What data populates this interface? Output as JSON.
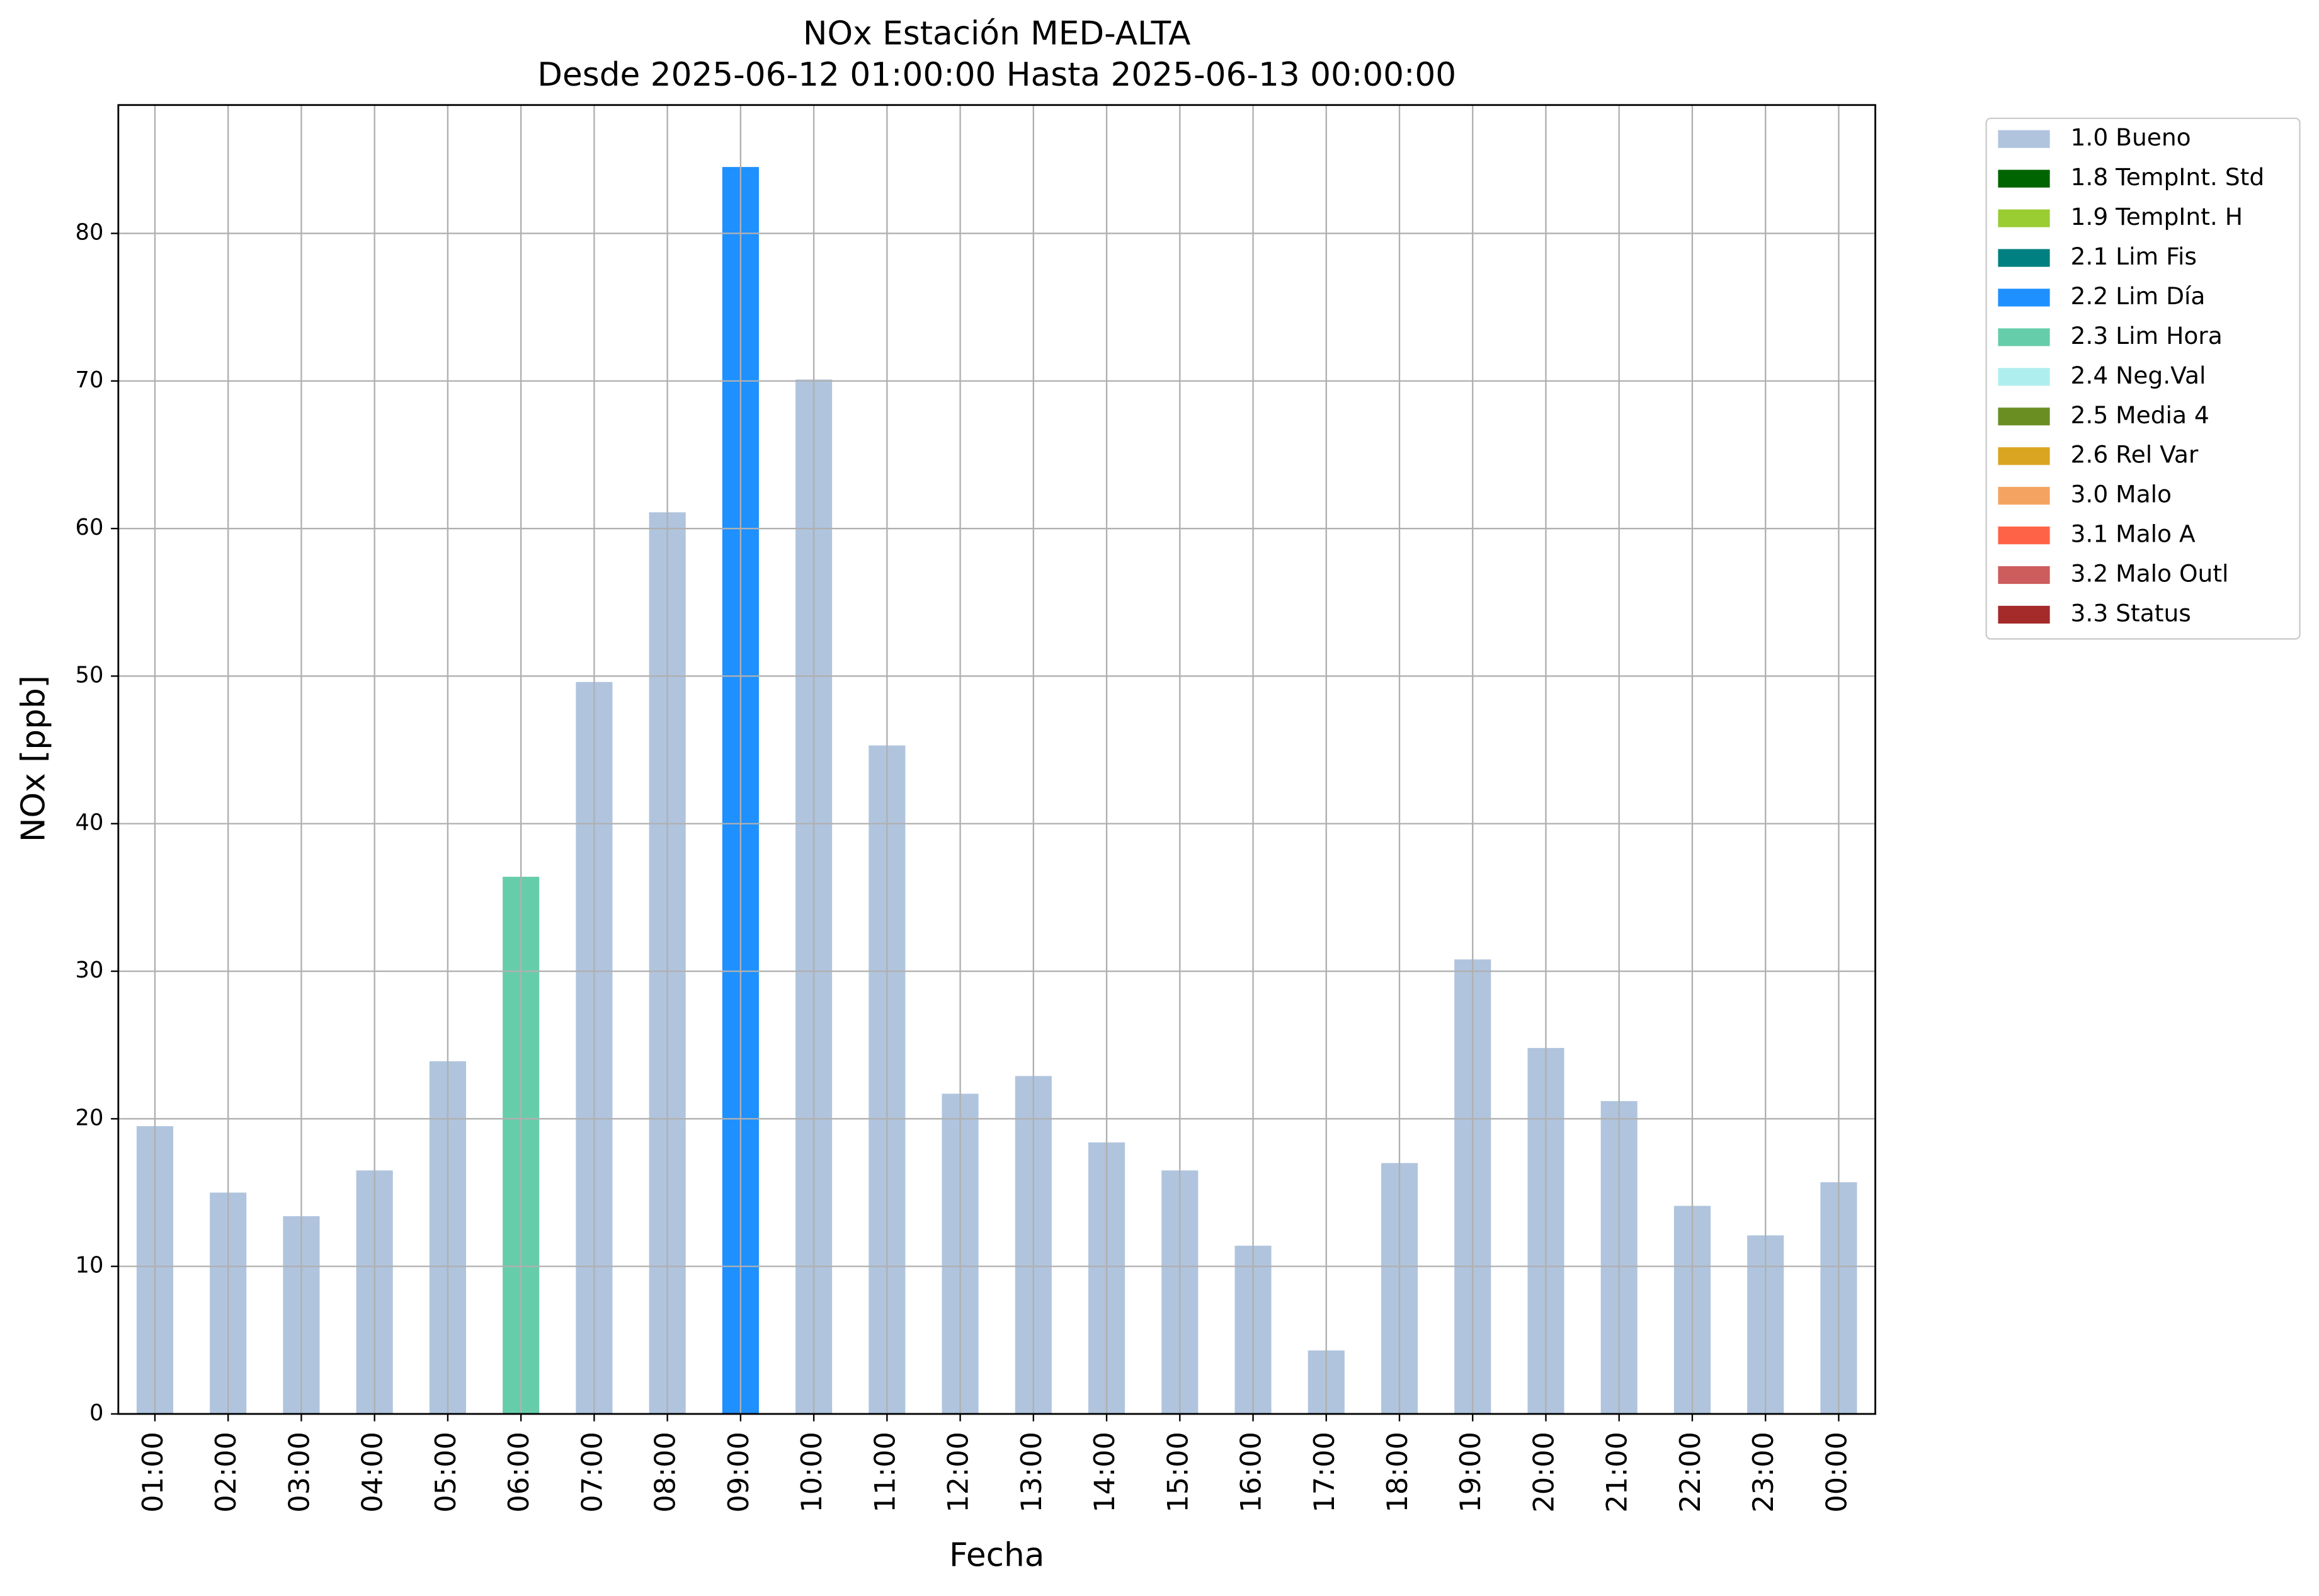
{
  "chart_data": {
    "type": "bar",
    "stacked": true,
    "title": "NOx Estación MED-ALTA",
    "subtitle": "Desde 2025-06-12 01:00:00 Hasta 2025-06-13 00:00:00",
    "x_label": "Fecha",
    "y_label": "NOx [ppb]",
    "categories": [
      "01:00",
      "02:00",
      "03:00",
      "04:00",
      "05:00",
      "06:00",
      "07:00",
      "08:00",
      "09:00",
      "10:00",
      "11:00",
      "12:00",
      "13:00",
      "14:00",
      "15:00",
      "16:00",
      "17:00",
      "18:00",
      "19:00",
      "20:00",
      "21:00",
      "22:00",
      "23:00",
      "00:00"
    ],
    "series": [
      {
        "name": "1.0 Bueno",
        "color": "#b0c4de",
        "values": [
          19.5,
          15.0,
          13.4,
          16.5,
          23.9,
          null,
          49.6,
          61.1,
          null,
          70.1,
          45.3,
          21.7,
          22.9,
          18.4,
          16.5,
          11.4,
          4.3,
          17.0,
          30.8,
          24.8,
          21.2,
          14.1,
          12.1,
          15.7
        ]
      },
      {
        "name": "1.8 TempInt. Std",
        "color": "#006400",
        "values": [
          null,
          null,
          null,
          null,
          null,
          null,
          null,
          null,
          null,
          null,
          null,
          null,
          null,
          null,
          null,
          null,
          null,
          null,
          null,
          null,
          null,
          null,
          null,
          null
        ]
      },
      {
        "name": "1.9 TempInt. H",
        "color": "#9acd32",
        "values": [
          null,
          null,
          null,
          null,
          null,
          null,
          null,
          null,
          null,
          null,
          null,
          null,
          null,
          null,
          null,
          null,
          null,
          null,
          null,
          null,
          null,
          null,
          null,
          null
        ]
      },
      {
        "name": "2.1 Lim Fis",
        "color": "#008080",
        "values": [
          null,
          null,
          null,
          null,
          null,
          null,
          null,
          null,
          null,
          null,
          null,
          null,
          null,
          null,
          null,
          null,
          null,
          null,
          null,
          null,
          null,
          null,
          null,
          null
        ]
      },
      {
        "name": "2.2 Lim Día",
        "color": "#1e90ff",
        "values": [
          null,
          null,
          null,
          null,
          null,
          null,
          null,
          null,
          84.5,
          null,
          null,
          null,
          null,
          null,
          null,
          null,
          null,
          null,
          null,
          null,
          null,
          null,
          null,
          null
        ]
      },
      {
        "name": "2.3 Lim Hora",
        "color": "#66cdaa",
        "values": [
          null,
          null,
          null,
          null,
          null,
          36.4,
          null,
          null,
          null,
          null,
          null,
          null,
          null,
          null,
          null,
          null,
          null,
          null,
          null,
          null,
          null,
          null,
          null,
          null
        ]
      },
      {
        "name": "2.4 Neg.Val",
        "color": "#afeeee",
        "values": [
          null,
          null,
          null,
          null,
          null,
          null,
          null,
          null,
          null,
          null,
          null,
          null,
          null,
          null,
          null,
          null,
          null,
          null,
          null,
          null,
          null,
          null,
          null,
          null
        ]
      },
      {
        "name": "2.5 Media 4",
        "color": "#6b8e23",
        "values": [
          null,
          null,
          null,
          null,
          null,
          null,
          null,
          null,
          null,
          null,
          null,
          null,
          null,
          null,
          null,
          null,
          null,
          null,
          null,
          null,
          null,
          null,
          null,
          null
        ]
      },
      {
        "name": "2.6 Rel Var",
        "color": "#daa520",
        "values": [
          null,
          null,
          null,
          null,
          null,
          null,
          null,
          null,
          null,
          null,
          null,
          null,
          null,
          null,
          null,
          null,
          null,
          null,
          null,
          null,
          null,
          null,
          null,
          null
        ]
      },
      {
        "name": "3.0 Malo",
        "color": "#f4a460",
        "values": [
          null,
          null,
          null,
          null,
          null,
          null,
          null,
          null,
          null,
          null,
          null,
          null,
          null,
          null,
          null,
          null,
          null,
          null,
          null,
          null,
          null,
          null,
          null,
          null
        ]
      },
      {
        "name": "3.1 Malo A",
        "color": "#ff6347",
        "values": [
          null,
          null,
          null,
          null,
          null,
          null,
          null,
          null,
          null,
          null,
          null,
          null,
          null,
          null,
          null,
          null,
          null,
          null,
          null,
          null,
          null,
          null,
          null,
          null
        ]
      },
      {
        "name": "3.2 Malo Outl",
        "color": "#cd5c5c",
        "values": [
          null,
          null,
          null,
          null,
          null,
          null,
          null,
          null,
          null,
          null,
          null,
          null,
          null,
          null,
          null,
          null,
          null,
          null,
          null,
          null,
          null,
          null,
          null,
          null
        ]
      },
      {
        "name": "3.3 Status",
        "color": "#a52a2a",
        "values": [
          null,
          null,
          null,
          null,
          null,
          null,
          null,
          null,
          null,
          null,
          null,
          null,
          null,
          null,
          null,
          null,
          null,
          null,
          null,
          null,
          null,
          null,
          null,
          null
        ]
      }
    ],
    "ylim": [
      0,
      88.7
    ],
    "yticks": [
      0,
      10,
      20,
      30,
      40,
      50,
      60,
      70,
      80
    ],
    "grid": true,
    "legend": "outside-upper-right"
  }
}
